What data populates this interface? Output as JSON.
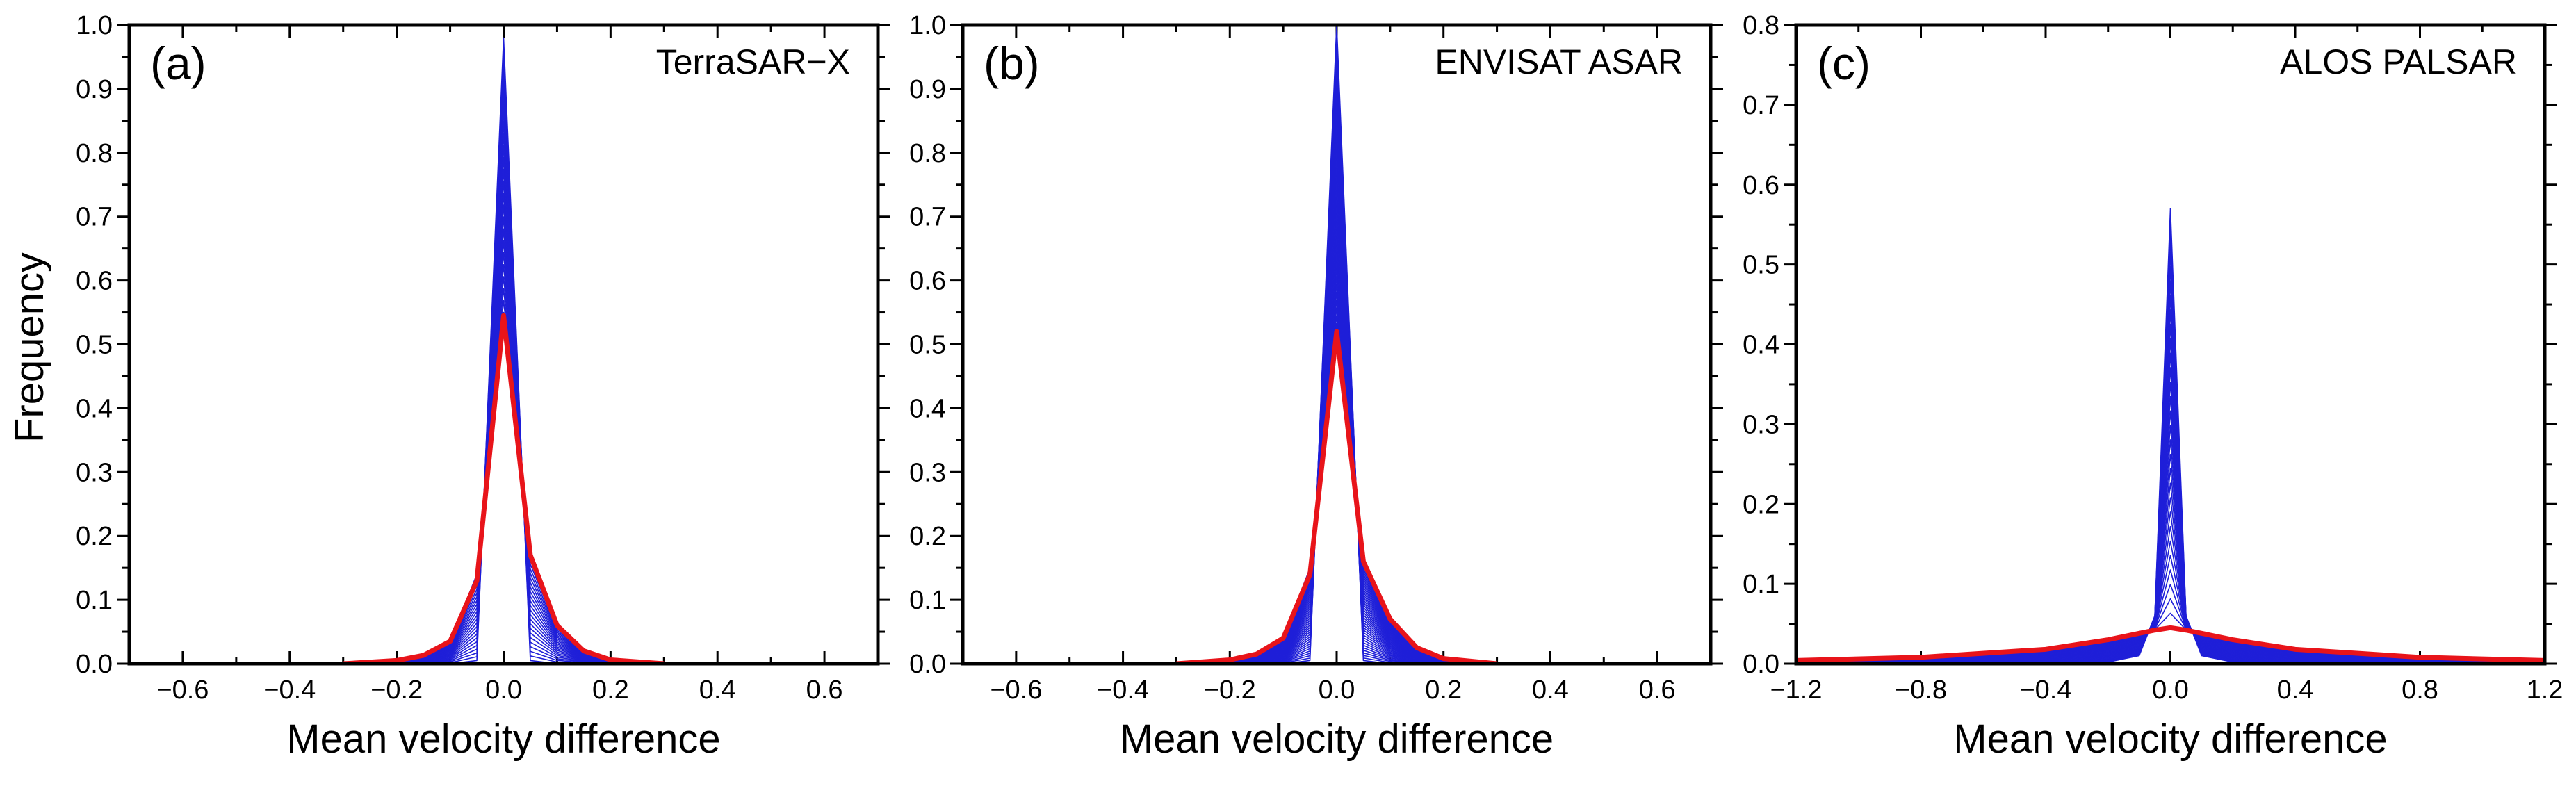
{
  "figure": {
    "ylabel": "Frequency",
    "colors": {
      "series": "#1f1fd8",
      "mean": "#e8141a",
      "axis": "#000000"
    }
  },
  "chart_data": [
    {
      "type": "line",
      "panel_label": "(a)",
      "title": "TerraSAR−X",
      "xlabel": "Mean velocity difference",
      "ylabel": "Frequency",
      "xlim": [
        -0.7,
        0.7
      ],
      "ylim": [
        0,
        1.0
      ],
      "xticks": [
        -0.6,
        -0.4,
        -0.2,
        0.0,
        0.2,
        0.4,
        0.6
      ],
      "xtick_labels": [
        "−0.6",
        "−0.4",
        "−0.2",
        "0.0",
        "0.2",
        "0.4",
        "0.6"
      ],
      "yticks": [
        0,
        0.1,
        0.2,
        0.3,
        0.4,
        0.5,
        0.6,
        0.7,
        0.8,
        0.9,
        1.0
      ],
      "ytick_labels": [
        "0.0",
        "0.1",
        "0.2",
        "0.3",
        "0.4",
        "0.5",
        "0.6",
        "0.7",
        "0.8",
        "0.9",
        "1.0"
      ],
      "series_curves": {
        "count": 24,
        "x": [
          -0.3,
          -0.2,
          -0.15,
          -0.1,
          -0.05,
          0.0,
          0.05,
          0.1,
          0.15,
          0.2,
          0.3
        ],
        "narrowest": [
          0.0,
          0.0,
          0.0,
          0.0,
          0.005,
          0.98,
          0.005,
          0.0,
          0.0,
          0.0,
          0.0
        ],
        "widest": [
          0.0,
          0.004,
          0.012,
          0.035,
          0.14,
          0.55,
          0.17,
          0.06,
          0.02,
          0.006,
          0.0
        ]
      },
      "mean_curve": {
        "x": [
          -0.3,
          -0.2,
          -0.15,
          -0.1,
          -0.05,
          0.0,
          0.05,
          0.1,
          0.15,
          0.2,
          0.3
        ],
        "y": [
          0.0,
          0.005,
          0.013,
          0.035,
          0.13,
          0.545,
          0.17,
          0.06,
          0.02,
          0.006,
          0.0
        ]
      }
    },
    {
      "type": "line",
      "panel_label": "(b)",
      "title": "ENVISAT ASAR",
      "xlabel": "Mean velocity difference",
      "ylabel": "",
      "xlim": [
        -0.7,
        0.7
      ],
      "ylim": [
        0,
        1.0
      ],
      "xticks": [
        -0.6,
        -0.4,
        -0.2,
        0.0,
        0.2,
        0.4,
        0.6
      ],
      "xtick_labels": [
        "−0.6",
        "−0.4",
        "−0.2",
        "0.0",
        "0.2",
        "0.4",
        "0.6"
      ],
      "yticks": [
        0,
        0.1,
        0.2,
        0.3,
        0.4,
        0.5,
        0.6,
        0.7,
        0.8,
        0.9,
        1.0
      ],
      "ytick_labels": [
        "0.0",
        "0.1",
        "0.2",
        "0.3",
        "0.4",
        "0.5",
        "0.6",
        "0.7",
        "0.8",
        "0.9",
        "1.0"
      ],
      "series_curves": {
        "count": 40,
        "x": [
          -0.3,
          -0.2,
          -0.15,
          -0.1,
          -0.05,
          0.0,
          0.05,
          0.1,
          0.15,
          0.2,
          0.3
        ],
        "narrowest": [
          0.0,
          0.0,
          0.0,
          0.0,
          0.005,
          1.0,
          0.005,
          0.0,
          0.0,
          0.0,
          0.0
        ],
        "widest": [
          0.0,
          0.005,
          0.014,
          0.04,
          0.15,
          0.52,
          0.16,
          0.07,
          0.025,
          0.008,
          0.0
        ]
      },
      "mean_curve": {
        "x": [
          -0.3,
          -0.2,
          -0.15,
          -0.1,
          -0.05,
          0.0,
          0.05,
          0.1,
          0.15,
          0.2,
          0.3
        ],
        "y": [
          0.0,
          0.006,
          0.015,
          0.04,
          0.14,
          0.52,
          0.16,
          0.07,
          0.025,
          0.008,
          0.0
        ]
      }
    },
    {
      "type": "line",
      "panel_label": "(c)",
      "title": "ALOS PALSAR",
      "xlabel": "Mean velocity difference",
      "ylabel": "",
      "xlim": [
        -1.2,
        1.2
      ],
      "ylim": [
        0,
        0.8
      ],
      "xticks": [
        -1.2,
        -0.8,
        -0.4,
        0.0,
        0.4,
        0.8,
        1.2
      ],
      "xtick_labels": [
        "−1.2",
        "−0.8",
        "−0.4",
        "0.0",
        "0.4",
        "0.8",
        "1.2"
      ],
      "yticks": [
        0,
        0.1,
        0.2,
        0.3,
        0.4,
        0.5,
        0.6,
        0.7,
        0.8
      ],
      "ytick_labels": [
        "0.0",
        "0.1",
        "0.2",
        "0.3",
        "0.4",
        "0.5",
        "0.6",
        "0.7",
        "0.8"
      ],
      "series_curves": {
        "count": 30,
        "x": [
          -1.2,
          -0.8,
          -0.4,
          -0.2,
          -0.1,
          -0.05,
          0.0,
          0.05,
          0.1,
          0.2,
          0.4,
          0.8,
          1.2
        ],
        "narrowest": [
          0.0,
          0.0,
          0.0,
          0.002,
          0.01,
          0.06,
          0.57,
          0.06,
          0.01,
          0.002,
          0.0,
          0.0,
          0.0
        ],
        "widest": [
          0.004,
          0.008,
          0.018,
          0.03,
          0.038,
          0.042,
          0.045,
          0.042,
          0.038,
          0.03,
          0.018,
          0.008,
          0.004
        ]
      },
      "mean_curve": {
        "x": [
          -1.2,
          -0.8,
          -0.4,
          -0.2,
          -0.1,
          -0.05,
          0.0,
          0.05,
          0.1,
          0.2,
          0.4,
          0.8,
          1.2
        ],
        "y": [
          0.004,
          0.008,
          0.018,
          0.03,
          0.038,
          0.042,
          0.045,
          0.042,
          0.038,
          0.03,
          0.018,
          0.008,
          0.004
        ]
      }
    }
  ]
}
